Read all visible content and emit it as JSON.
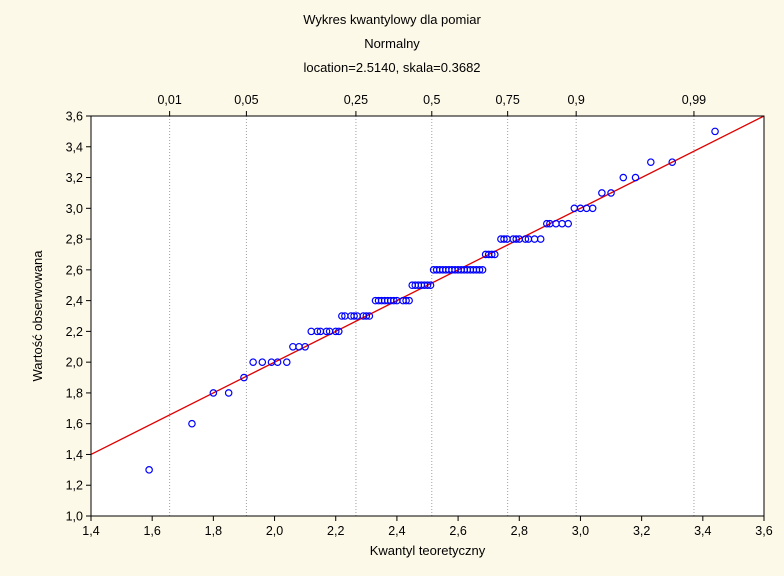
{
  "chart_data": {
    "type": "scatter",
    "title": "Wykres kwantylowy dla pomiar",
    "subtitle": "Normalny",
    "params": "location=2.5140, skala=0.3682",
    "xlabel": "Kwantyl teoretyczny",
    "ylabel": "Wartość obserwowana",
    "xlim": [
      1.4,
      3.6
    ],
    "ylim": [
      1.0,
      3.6
    ],
    "x_ticks": [
      "1,4",
      "1,6",
      "1,8",
      "2,0",
      "2,2",
      "2,4",
      "2,6",
      "2,8",
      "3,0",
      "3,2",
      "3,4",
      "3,6"
    ],
    "y_ticks": [
      "1,0",
      "1,2",
      "1,4",
      "1,6",
      "1,8",
      "2,0",
      "2,2",
      "2,4",
      "2,6",
      "2,8",
      "3,0",
      "3,2",
      "3,4",
      "3,6"
    ],
    "prob_labels": [
      "0,01",
      "0,05",
      "0,25",
      "0,5",
      "0,75",
      "0,9",
      "0,99"
    ],
    "prob_positions": [
      1.657,
      1.908,
      2.266,
      2.514,
      2.762,
      2.986,
      3.371
    ],
    "ref_line": {
      "slope": 1.0,
      "intercept": 0.0
    },
    "colors": {
      "points": "#0000ff",
      "line": "#e00000",
      "background": "#fdf9e8",
      "grid": "#a0a0a0"
    },
    "grid": "vertical dotted at probability ticks",
    "series": [
      {
        "x": [
          1.59,
          1.73,
          1.8,
          1.85,
          1.9,
          1.93,
          1.96,
          1.99,
          2.01,
          2.04,
          2.06,
          2.08,
          2.1,
          2.12,
          2.14,
          2.15,
          2.17,
          2.18,
          2.2,
          2.21,
          2.22,
          2.23,
          2.25,
          2.26,
          2.27,
          2.29,
          2.3,
          2.31,
          2.33,
          2.34,
          2.35,
          2.36,
          2.37,
          2.38,
          2.39,
          2.4,
          2.42,
          2.43,
          2.44,
          2.45,
          2.46,
          2.47,
          2.48,
          2.49,
          2.5,
          2.51,
          2.52,
          2.53,
          2.54,
          2.55,
          2.56,
          2.57,
          2.58,
          2.59,
          2.6,
          2.61,
          2.62,
          2.63,
          2.64,
          2.65,
          2.66,
          2.67,
          2.68,
          2.69,
          2.7,
          2.71,
          2.72,
          2.74,
          2.75,
          2.76,
          2.78,
          2.79,
          2.8,
          2.82,
          2.83,
          2.85,
          2.87,
          2.89,
          2.9,
          2.92,
          2.94,
          2.96,
          2.98,
          3.0,
          3.02,
          3.04,
          3.07,
          3.1,
          3.14,
          3.18,
          3.23,
          3.3,
          3.44
        ],
        "y": [
          1.3,
          1.6,
          1.8,
          1.8,
          1.9,
          2.0,
          2.0,
          2.0,
          2.0,
          2.0,
          2.1,
          2.1,
          2.1,
          2.2,
          2.2,
          2.2,
          2.2,
          2.2,
          2.2,
          2.2,
          2.3,
          2.3,
          2.3,
          2.3,
          2.3,
          2.3,
          2.3,
          2.3,
          2.4,
          2.4,
          2.4,
          2.4,
          2.4,
          2.4,
          2.4,
          2.4,
          2.4,
          2.4,
          2.4,
          2.5,
          2.5,
          2.5,
          2.5,
          2.5,
          2.5,
          2.5,
          2.6,
          2.6,
          2.6,
          2.6,
          2.6,
          2.6,
          2.6,
          2.6,
          2.6,
          2.6,
          2.6,
          2.6,
          2.6,
          2.6,
          2.6,
          2.6,
          2.6,
          2.7,
          2.7,
          2.7,
          2.7,
          2.8,
          2.8,
          2.8,
          2.8,
          2.8,
          2.8,
          2.8,
          2.8,
          2.8,
          2.8,
          2.9,
          2.9,
          2.9,
          2.9,
          2.9,
          3.0,
          3.0,
          3.0,
          3.0,
          3.1,
          3.1,
          3.2,
          3.2,
          3.3,
          3.3,
          3.5
        ]
      }
    ]
  }
}
